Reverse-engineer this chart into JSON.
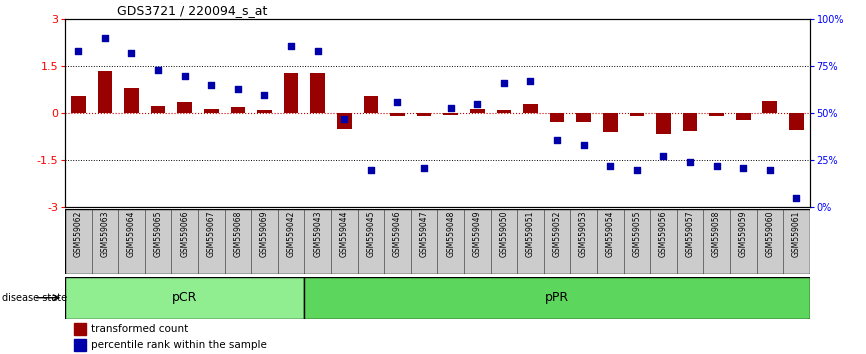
{
  "title": "GDS3721 / 220094_s_at",
  "samples": [
    "GSM559062",
    "GSM559063",
    "GSM559064",
    "GSM559065",
    "GSM559066",
    "GSM559067",
    "GSM559068",
    "GSM559069",
    "GSM559042",
    "GSM559043",
    "GSM559044",
    "GSM559045",
    "GSM559046",
    "GSM559047",
    "GSM559048",
    "GSM559049",
    "GSM559050",
    "GSM559051",
    "GSM559052",
    "GSM559053",
    "GSM559054",
    "GSM559055",
    "GSM559056",
    "GSM559057",
    "GSM559058",
    "GSM559059",
    "GSM559060",
    "GSM559061"
  ],
  "transformed_count": [
    0.55,
    1.35,
    0.8,
    0.22,
    0.35,
    0.15,
    0.2,
    0.1,
    1.3,
    1.3,
    -0.5,
    0.55,
    -0.08,
    -0.08,
    -0.05,
    0.15,
    0.1,
    0.3,
    -0.28,
    -0.28,
    -0.6,
    -0.1,
    -0.65,
    -0.58,
    -0.1,
    -0.22,
    0.38,
    -0.55
  ],
  "percentile_rank": [
    83,
    90,
    82,
    73,
    70,
    65,
    63,
    60,
    86,
    83,
    47,
    20,
    56,
    21,
    53,
    55,
    66,
    67,
    36,
    33,
    22,
    20,
    27,
    24,
    22,
    21,
    20,
    5
  ],
  "group_labels": [
    "pCR",
    "pPR"
  ],
  "group_boundaries": [
    0,
    9,
    28
  ],
  "group_colors_fill": [
    "#90EE90",
    "#5CD65C"
  ],
  "group_edge_color": "#000000",
  "bar_color": "#990000",
  "dot_color": "#0000AA",
  "ylim": [
    -3,
    3
  ],
  "yticks_left": [
    -3,
    -1.5,
    0,
    1.5,
    3
  ],
  "yticks_right_vals": [
    0,
    25,
    50,
    75,
    100
  ],
  "yticks_right_labels": [
    "0%",
    "25%",
    "50%",
    "75%",
    "100%"
  ],
  "dotted_lines": [
    1.5,
    0.0,
    -1.5
  ],
  "dotted_colors": [
    "black",
    "#CC0000",
    "black"
  ],
  "background_color": "#ffffff",
  "xtick_gray": "#CCCCCC"
}
